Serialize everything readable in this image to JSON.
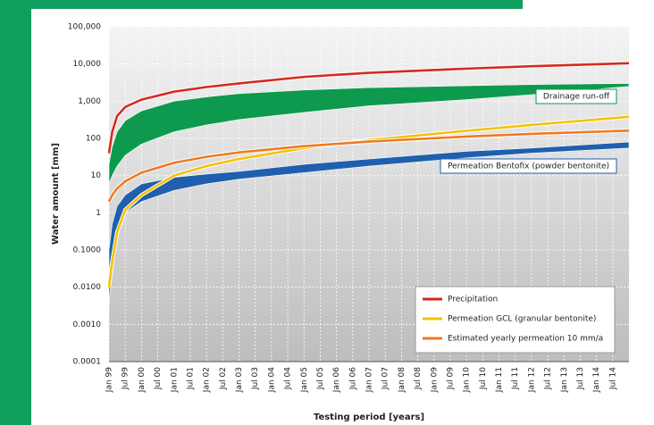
{
  "chart_data": {
    "type": "line",
    "ylabel": "Water amount [mm]",
    "xlabel": "Testing period [years]",
    "log_y": true,
    "grid": true,
    "legend": "lower right",
    "xlim": [
      1999,
      2015
    ],
    "ylim": [
      0.0001,
      100000
    ],
    "yticks": [
      {
        "value": 100000,
        "label": "100,000"
      },
      {
        "value": 10000,
        "label": "10,000"
      },
      {
        "value": 1000,
        "label": "1,000"
      },
      100,
      10,
      1,
      {
        "value": 0.1,
        "label": "0.1000"
      },
      {
        "value": 0.01,
        "label": "0.0100"
      },
      {
        "value": 0.001,
        "label": "0.0010"
      },
      0.0001
    ],
    "xticks": [
      {
        "value": 1999,
        "label": "Jan 99"
      },
      {
        "value": 1999.5,
        "label": "Jul 99"
      },
      {
        "value": 2000,
        "label": "Jan 00"
      },
      {
        "value": 2000.5,
        "label": "Jul 00"
      },
      {
        "value": 2001,
        "label": "Jan 01"
      },
      {
        "value": 2001.5,
        "label": "Jul 01"
      },
      {
        "value": 2002,
        "label": "Jan 02"
      },
      {
        "value": 2002.5,
        "label": "Jul 02"
      },
      {
        "value": 2003,
        "label": "Jan 03"
      },
      {
        "value": 2003.5,
        "label": "Jul 03"
      },
      {
        "value": 2004,
        "label": "Jan 04"
      },
      {
        "value": 2004.5,
        "label": "Jul 04"
      },
      {
        "value": 2005,
        "label": "Jan 05"
      },
      {
        "value": 2005.5,
        "label": "Jul 05"
      },
      {
        "value": 2006,
        "label": "Jan 06"
      },
      {
        "value": 2006.5,
        "label": "Jul 06"
      },
      {
        "value": 2007,
        "label": "Jan 07"
      },
      {
        "value": 2007.5,
        "label": "Jul 07"
      },
      {
        "value": 2008,
        "label": "Jan 08"
      },
      {
        "value": 2008.5,
        "label": "Jul 08"
      },
      {
        "value": 2009,
        "label": "Jan 09"
      },
      {
        "value": 2009.5,
        "label": "Jul 09"
      },
      {
        "value": 2010,
        "label": "Jan 10"
      },
      {
        "value": 2010.5,
        "label": "Jul 10"
      },
      {
        "value": 2011,
        "label": "Jan 11"
      },
      {
        "value": 2011.5,
        "label": "Jul 11"
      },
      {
        "value": 2012,
        "label": "Jan 12"
      },
      {
        "value": 2012.5,
        "label": "Jul 12"
      },
      {
        "value": 2013,
        "label": "Jan 13"
      },
      {
        "value": 2013.5,
        "label": "Jul 13"
      },
      {
        "value": 2014,
        "label": "Jan 14"
      },
      {
        "value": 2014.5,
        "label": "Jul 14"
      }
    ],
    "x": [
      1999.0,
      1999.1,
      1999.25,
      1999.5,
      2000,
      2001,
      2002,
      2003,
      2005,
      2007,
      2010,
      2012,
      2015
    ],
    "bands": [
      {
        "name": "Drainage run-off",
        "color": "#0e9a4e",
        "low": [
          6,
          10,
          18,
          35,
          70,
          150,
          230,
          320,
          500,
          750,
          1100,
          1500,
          2500
        ],
        "high": [
          20,
          60,
          150,
          300,
          550,
          1000,
          1300,
          1600,
          2000,
          2300,
          2600,
          2800,
          3000
        ]
      },
      {
        "name": "Permeation Bentofix (powder bentonite)",
        "color": "#1f5fae",
        "low": [
          0.003,
          0.05,
          0.3,
          1,
          2,
          4,
          6,
          8,
          12,
          18,
          30,
          40,
          55
        ],
        "high": [
          0.1,
          0.5,
          1.5,
          3,
          6,
          9,
          11,
          13,
          20,
          28,
          45,
          55,
          80
        ]
      }
    ],
    "series": [
      {
        "name": "Precipitation",
        "color": "#d42a1f",
        "values": [
          40,
          150,
          400,
          700,
          1100,
          1800,
          2400,
          3000,
          4500,
          5800,
          7500,
          8700,
          10500
        ]
      },
      {
        "name": "Permeation GCL (granular bentonite)",
        "color": "#f2c200",
        "values": [
          0.01,
          0.05,
          0.3,
          1.2,
          3,
          10,
          18,
          28,
          55,
          90,
          160,
          230,
          380
        ]
      },
      {
        "name": "Estimated yearly permeation 10 mm/a",
        "color": "#ee7a22",
        "values": [
          2,
          3,
          4.5,
          7,
          12,
          22,
          32,
          42,
          62,
          82,
          112,
          132,
          162
        ]
      }
    ]
  }
}
